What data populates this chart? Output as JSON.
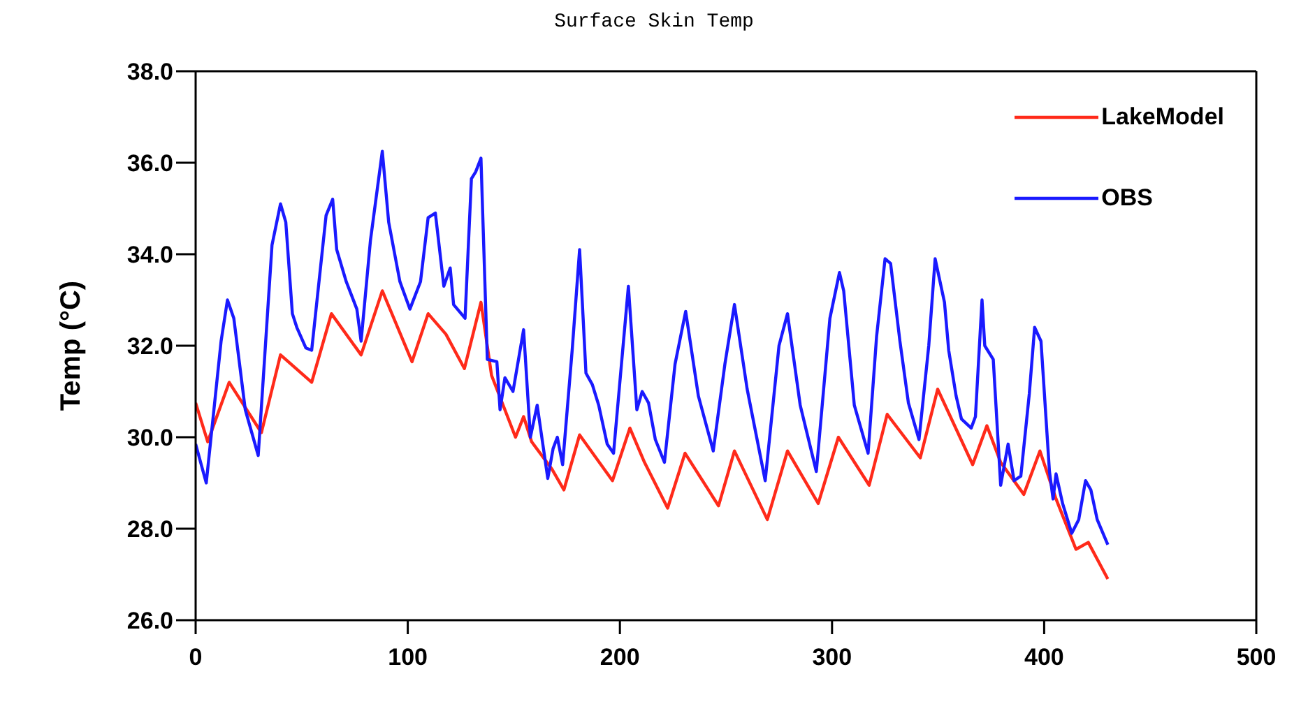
{
  "chart_data": {
    "type": "line",
    "title": "Surface Skin Temp",
    "ylabel": "Temp (°C)",
    "xlim": [
      0,
      500
    ],
    "xticks": [
      0,
      100,
      200,
      300,
      400,
      500
    ],
    "ylim": [
      26,
      38
    ],
    "yticks": [
      {
        "value": 26,
        "label": "26.0"
      },
      {
        "value": 28,
        "label": "28.0"
      },
      {
        "value": 30,
        "label": "30.0"
      },
      {
        "value": 32,
        "label": "32.0"
      },
      {
        "value": 34,
        "label": "34.0"
      },
      {
        "value": 36,
        "label": "36.0"
      },
      {
        "value": 38,
        "label": "38.0"
      }
    ],
    "legend": "top right",
    "marker": "none",
    "line_style": "solid",
    "series": [
      {
        "name": "LakeModel",
        "color": "#ff2a1a",
        "x": [
          0,
          5.7,
          15.8,
          31,
          40,
          54.7,
          64,
          78,
          88,
          102,
          109.6,
          118,
          126.7,
          134.5,
          139.5,
          150.8,
          154.6,
          158.4,
          168,
          173.6,
          181,
          196.5,
          204.7,
          211.6,
          222.5,
          230.7,
          246.5,
          254,
          269.5,
          279,
          293.5,
          303,
          317.5,
          326,
          341.6,
          349.8,
          366.3,
          373,
          379.5,
          390.4,
          398,
          405.6,
          415,
          420.8,
          430
        ],
        "values": [
          30.75,
          29.9,
          31.2,
          30.1,
          31.8,
          31.2,
          32.7,
          31.8,
          33.2,
          31.65,
          32.7,
          32.25,
          31.5,
          32.95,
          31.35,
          30.0,
          30.45,
          29.9,
          29.3,
          28.85,
          30.05,
          29.05,
          30.2,
          29.45,
          28.45,
          29.65,
          28.5,
          29.7,
          28.2,
          29.7,
          28.55,
          30.0,
          28.95,
          30.5,
          29.55,
          31.05,
          29.4,
          30.25,
          29.45,
          28.75,
          29.7,
          28.65,
          27.55,
          27.7,
          26.9
        ]
      },
      {
        "name": "OBS",
        "color": "#1a1aff",
        "x": [
          0,
          5,
          12,
          15,
          18,
          23.4,
          29.5,
          36,
          40,
          42.5,
          45.6,
          47.7,
          52,
          54.7,
          61.5,
          64.6,
          66.5,
          71,
          76,
          78,
          82.4,
          88,
          91,
          96.3,
          101,
          106,
          109.6,
          113,
          117,
          120,
          121.6,
          127,
          130,
          132,
          134.5,
          137.5,
          142,
          143.5,
          145.8,
          149.6,
          154.6,
          157.8,
          161,
          166,
          168.5,
          170.5,
          173,
          177.5,
          181,
          184,
          187,
          190,
          194,
          197,
          204,
          208,
          210.5,
          213.5,
          216.7,
          221,
          226,
          231,
          237,
          244,
          249.5,
          254,
          260,
          268.5,
          275,
          279,
          285,
          292.6,
          299,
          303.5,
          305.5,
          310.5,
          317,
          321,
          325,
          327.6,
          332,
          336,
          341,
          345.6,
          348.6,
          353,
          355,
          358.5,
          361,
          365.6,
          367.6,
          370.7,
          372,
          376,
          379.5,
          383,
          385.8,
          389,
          393,
          395.5,
          398.5,
          402.5,
          404.2,
          405.6,
          408.7,
          413,
          416.3,
          419.5,
          422,
          425,
          430
        ],
        "values": [
          29.85,
          29.0,
          32.1,
          33.0,
          32.6,
          30.6,
          29.6,
          34.2,
          35.1,
          34.7,
          32.7,
          32.4,
          31.95,
          31.9,
          34.85,
          35.2,
          34.1,
          33.4,
          32.8,
          32.1,
          34.3,
          36.25,
          34.7,
          33.4,
          32.8,
          33.4,
          34.8,
          34.9,
          33.3,
          33.7,
          32.9,
          32.6,
          35.65,
          35.8,
          36.1,
          31.7,
          31.65,
          30.6,
          31.3,
          31.0,
          32.35,
          30.0,
          30.7,
          29.1,
          29.75,
          30.0,
          29.4,
          31.9,
          34.1,
          31.4,
          31.15,
          30.7,
          29.85,
          29.65,
          33.3,
          30.6,
          31.0,
          30.75,
          29.95,
          29.45,
          31.6,
          32.75,
          30.9,
          29.7,
          31.6,
          32.9,
          31.05,
          29.05,
          32.0,
          32.7,
          30.7,
          29.25,
          32.6,
          33.6,
          33.2,
          30.7,
          29.65,
          32.2,
          33.9,
          33.8,
          32.1,
          30.75,
          29.95,
          32.0,
          33.9,
          32.95,
          31.9,
          30.9,
          30.4,
          30.2,
          30.45,
          33.0,
          32.0,
          31.7,
          28.95,
          29.85,
          29.05,
          29.15,
          30.95,
          32.4,
          32.1,
          29.25,
          28.65,
          29.2,
          28.55,
          27.9,
          28.2,
          29.05,
          28.85,
          28.2,
          27.65
        ]
      }
    ]
  }
}
